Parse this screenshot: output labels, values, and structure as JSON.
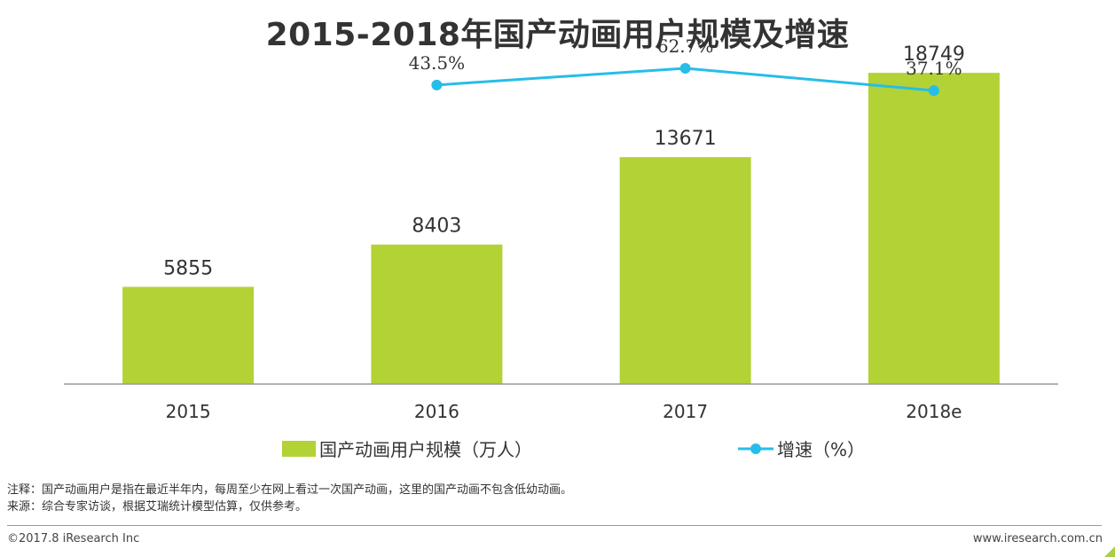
{
  "chart_data": {
    "type": "bar",
    "title": "2015-2018年国产动画用户规模及增速",
    "categories": [
      "2015",
      "2016",
      "2017",
      "2018e"
    ],
    "series": [
      {
        "name": "国产动画用户规模（万人）",
        "type": "bar",
        "values": [
          5855,
          8403,
          13671,
          18749
        ],
        "labels": [
          "5855",
          "8403",
          "13671",
          "18749"
        ],
        "color": "#b2d235"
      },
      {
        "name": "增速（%）",
        "type": "line",
        "values": [
          null,
          43.5,
          62.7,
          37.1
        ],
        "labels": [
          "",
          "43.5%",
          "62.7%",
          "37.1%"
        ],
        "color": "#27bde8"
      }
    ],
    "ylim": [
      0,
      21000
    ],
    "growth_ylim": [
      -300,
      80
    ],
    "xlabel": "",
    "ylabel": "",
    "grid": false,
    "legend_position": "bottom"
  },
  "notes": {
    "note": "注释：国产动画用户是指在最近半年内，每周至少在网上看过一次国产动画，这里的国产动画不包含低幼动画。",
    "source": "来源：综合专家访谈，根据艾瑞统计模型估算，仅供参考。"
  },
  "footer": {
    "copyright": "©2017.8 iResearch Inc",
    "website": "www.iresearch.com.cn"
  },
  "colors": {
    "bar": "#b2d235",
    "line": "#27bde8",
    "axis": "#999999",
    "text": "#333333"
  }
}
